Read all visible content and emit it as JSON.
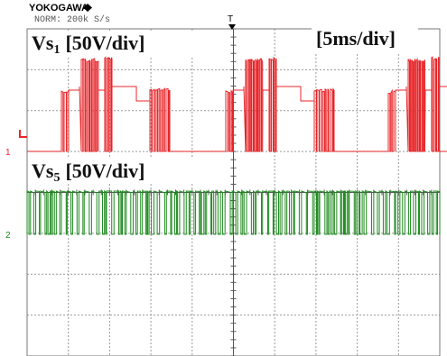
{
  "header": {
    "brand": "YOKOGAWA",
    "mode": "NORM: 200k S/s"
  },
  "timebase": "[5ms/div]",
  "trigger": "T",
  "traces": [
    {
      "label": "Vs",
      "subscript": "1",
      "scale": "[50V/div]",
      "channel": "1"
    },
    {
      "label": "Vs",
      "subscript": "5",
      "scale": "[50V/div]",
      "channel": "2"
    }
  ]
}
